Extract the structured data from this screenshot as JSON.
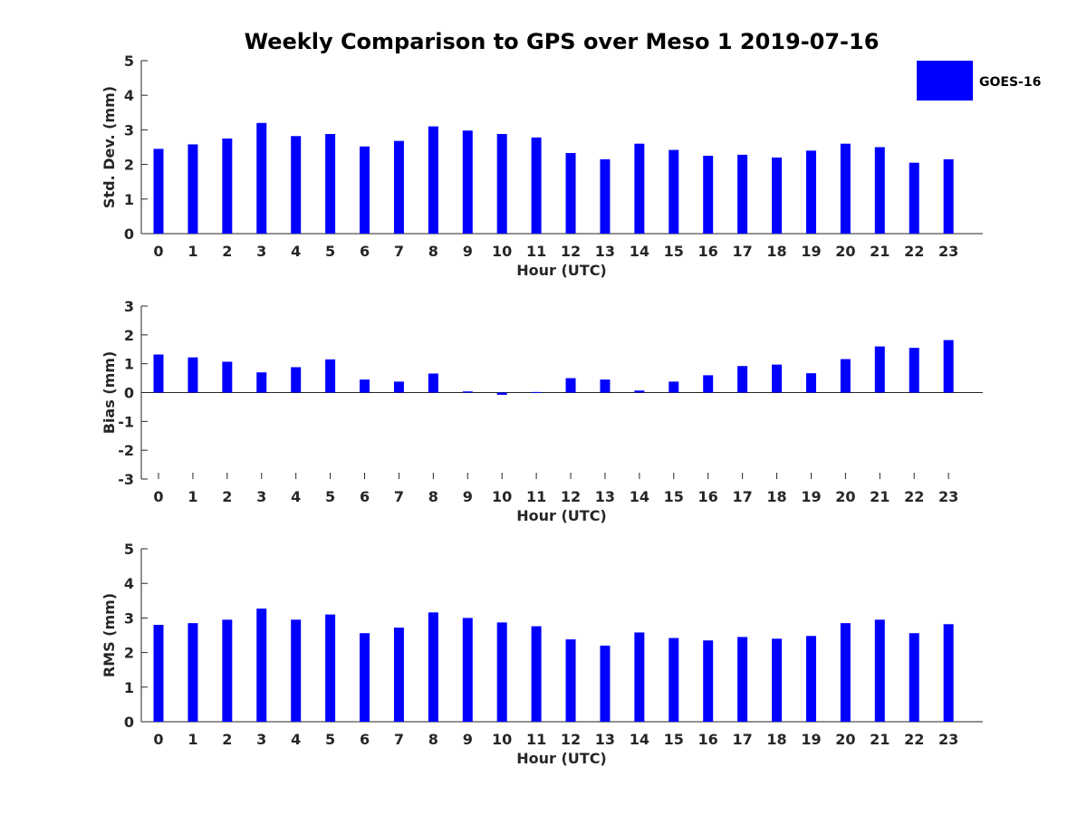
{
  "chart_data": {
    "type": "bar",
    "title": "Weekly Comparison to GPS over Meso 1 2019-07-16",
    "legend": {
      "label": "GOES-16",
      "position": "top-right"
    },
    "color": "#0000ff",
    "categories": [
      "0",
      "1",
      "2",
      "3",
      "4",
      "5",
      "6",
      "7",
      "8",
      "9",
      "10",
      "11",
      "12",
      "13",
      "14",
      "15",
      "16",
      "17",
      "18",
      "19",
      "20",
      "21",
      "22",
      "23"
    ],
    "panels": [
      {
        "name": "std-dev",
        "ylabel": "Std. Dev. (mm)",
        "xlabel": "Hour (UTC)",
        "ylim": [
          0,
          5
        ],
        "yticks": [
          "0",
          "1",
          "2",
          "3",
          "4",
          "5"
        ],
        "values": [
          2.45,
          2.58,
          2.75,
          3.2,
          2.82,
          2.88,
          2.52,
          2.68,
          3.1,
          2.98,
          2.88,
          2.78,
          2.33,
          2.15,
          2.6,
          2.42,
          2.25,
          2.28,
          2.2,
          2.4,
          2.6,
          2.5,
          2.05,
          2.15
        ]
      },
      {
        "name": "bias",
        "ylabel": "Bias (mm)",
        "xlabel": "Hour (UTC)",
        "ylim": [
          -3,
          3
        ],
        "yticks": [
          "-3",
          "-2",
          "-1",
          "0",
          "1",
          "2",
          "3"
        ],
        "values": [
          1.32,
          1.22,
          1.07,
          0.7,
          0.88,
          1.15,
          0.45,
          0.38,
          0.66,
          0.04,
          -0.08,
          0.02,
          0.5,
          0.45,
          0.07,
          0.38,
          0.6,
          0.92,
          0.97,
          0.67,
          1.16,
          1.6,
          1.55,
          1.82
        ]
      },
      {
        "name": "rms",
        "ylabel": "RMS (mm)",
        "xlabel": "Hour (UTC)",
        "ylim": [
          0,
          5
        ],
        "yticks": [
          "0",
          "1",
          "2",
          "3",
          "4",
          "5"
        ],
        "values": [
          2.8,
          2.85,
          2.95,
          3.27,
          2.95,
          3.1,
          2.56,
          2.72,
          3.16,
          3.0,
          2.87,
          2.76,
          2.38,
          2.2,
          2.58,
          2.42,
          2.35,
          2.45,
          2.4,
          2.48,
          2.85,
          2.95,
          2.56,
          2.82
        ]
      }
    ]
  }
}
